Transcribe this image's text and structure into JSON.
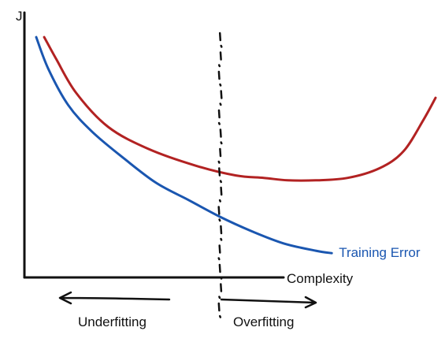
{
  "chart_data": {
    "type": "line",
    "title": "",
    "ylabel": "J",
    "xlabel": "Complexity",
    "grid": false,
    "series": [
      {
        "name": "",
        "color": "#b22222",
        "x": [
          0.02,
          0.05,
          0.1,
          0.18,
          0.28,
          0.4,
          0.5,
          0.57,
          0.63,
          0.7,
          0.78,
          0.86,
          0.92,
          0.97,
          1.0
        ],
        "y": [
          0.99,
          0.9,
          0.76,
          0.62,
          0.53,
          0.46,
          0.42,
          0.41,
          0.4,
          0.4,
          0.41,
          0.45,
          0.52,
          0.65,
          0.74
        ]
      },
      {
        "name": "Training Error",
        "color": "#1a56b0",
        "x": [
          0.0,
          0.03,
          0.08,
          0.14,
          0.22,
          0.3,
          0.38,
          0.46,
          0.54,
          0.62,
          0.7,
          0.74
        ],
        "y": [
          0.99,
          0.86,
          0.71,
          0.6,
          0.49,
          0.39,
          0.32,
          0.25,
          0.19,
          0.14,
          0.11,
          0.1
        ]
      }
    ],
    "divider": {
      "x": 0.46
    },
    "annotations": {
      "left_label": "Underfitting",
      "right_label": "Overfitting"
    },
    "colors": {
      "axis": "#111111",
      "arrow": "#111111",
      "divider": "#111111"
    }
  }
}
